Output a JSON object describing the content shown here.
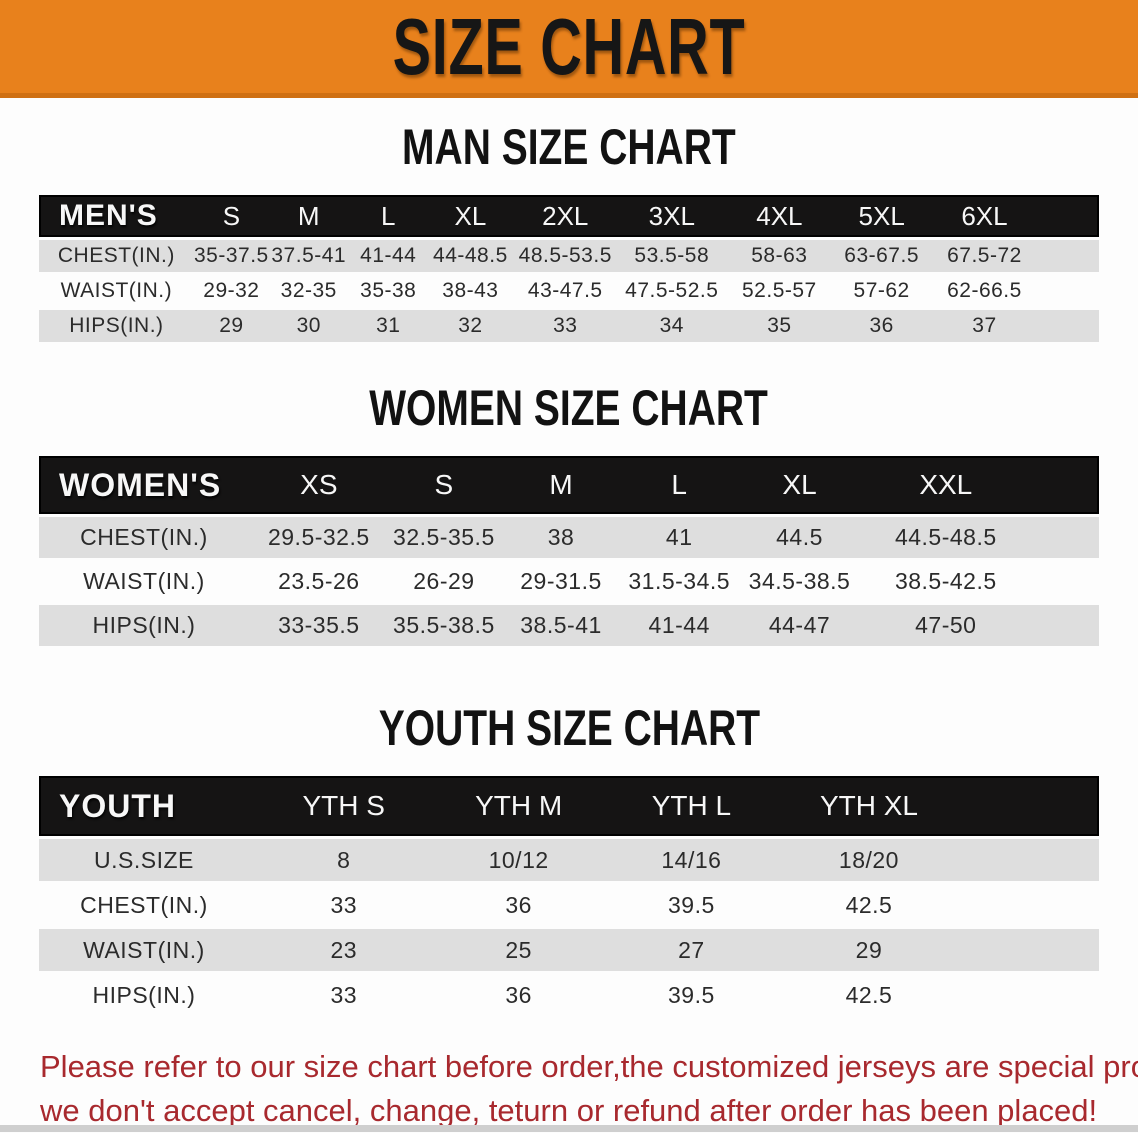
{
  "banner": {
    "title": "SIZE CHART"
  },
  "sections": {
    "men": {
      "title": "MAN SIZE CHART",
      "table": {
        "header_label": "MEN'S",
        "columns": [
          "S",
          "M",
          "L",
          "XL",
          "2XL",
          "3XL",
          "4XL",
          "5XL",
          "6XL"
        ],
        "rows": [
          {
            "label": "CHEST(IN.)",
            "values": [
              "35-37.5",
              "37.5-41",
              "41-44",
              "44-48.5",
              "48.5-53.5",
              "53.5-58",
              "58-63",
              "63-67.5",
              "67.5-72"
            ]
          },
          {
            "label": "WAIST(IN.)",
            "values": [
              "29-32",
              "32-35",
              "35-38",
              "38-43",
              "43-47.5",
              "47.5-52.5",
              "52.5-57",
              "57-62",
              "62-66.5"
            ]
          },
          {
            "label": "HIPS(IN.)",
            "values": [
              "29",
              "30",
              "31",
              "32",
              "33",
              "34",
              "35",
              "36",
              "37"
            ]
          }
        ]
      }
    },
    "women": {
      "title": "WOMEN SIZE CHART",
      "table": {
        "header_label": "WOMEN'S",
        "columns": [
          "XS",
          "S",
          "M",
          "L",
          "XL",
          "XXL"
        ],
        "rows": [
          {
            "label": "CHEST(IN.)",
            "values": [
              "29.5-32.5",
              "32.5-35.5",
              "38",
              "41",
              "44.5",
              "44.5-48.5"
            ]
          },
          {
            "label": "WAIST(IN.)",
            "values": [
              "23.5-26",
              "26-29",
              "29-31.5",
              "31.5-34.5",
              "34.5-38.5",
              "38.5-42.5"
            ]
          },
          {
            "label": "HIPS(IN.)",
            "values": [
              "33-35.5",
              "35.5-38.5",
              "38.5-41",
              "41-44",
              "44-47",
              "47-50"
            ]
          }
        ]
      }
    },
    "youth": {
      "title": "YOUTH SIZE CHART",
      "table": {
        "header_label": "YOUTH",
        "columns": [
          "YTH S",
          "YTH M",
          "YTH L",
          "YTH XL"
        ],
        "rows": [
          {
            "label": "U.S.SIZE",
            "values": [
              "8",
              "10/12",
              "14/16",
              "18/20"
            ]
          },
          {
            "label": "CHEST(IN.)",
            "values": [
              "33",
              "36",
              "39.5",
              "42.5"
            ]
          },
          {
            "label": "WAIST(IN.)",
            "values": [
              "23",
              "25",
              "27",
              "29"
            ]
          },
          {
            "label": "HIPS(IN.)",
            "values": [
              "33",
              "36",
              "39.5",
              "42.5"
            ]
          }
        ]
      }
    }
  },
  "disclaimer": {
    "line1": "Please refer to our size chart before order,the customized jerseys are special products,",
    "line2": "we don't accept cancel, change, teturn or refund after order has been placed!"
  },
  "colors": {
    "banner_orange": "#e8811c",
    "header_black": "#151414",
    "row_gray": "#dedede",
    "disclaimer_red": "#a8292e"
  }
}
